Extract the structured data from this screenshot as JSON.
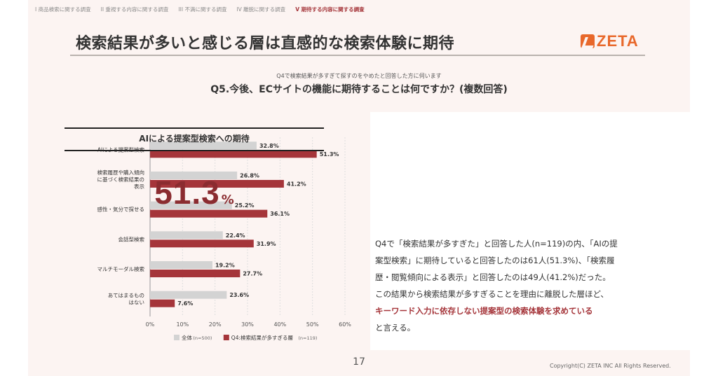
{
  "breadcrumbs": [
    {
      "label": "I 商品検索に関する調査",
      "active": false
    },
    {
      "label": "II 重視する内容に関する調査",
      "active": false
    },
    {
      "label": "III 不満に関する調査",
      "active": false
    },
    {
      "label": "IV 離脱に関する調査",
      "active": false
    },
    {
      "label": "V 期待する内容に関する調査",
      "active": true
    }
  ],
  "title": "検索結果が多いと感じる層は直感的な検索体験に期待",
  "logo": "ZETA",
  "question": {
    "sub": "Q4で検索結果が多すぎて探すのをやめたと回答した方に伺います",
    "main": "Q5.今後、ECサイトの機能に期待することは何ですか？(複数回答)"
  },
  "chart_data": {
    "type": "bar",
    "orientation": "horizontal",
    "categories": [
      [
        "AIによる提案型検索"
      ],
      [
        "検索履歴や購入傾向",
        "に基づく検索結果の",
        "表示"
      ],
      [
        "感性・気分で探せる"
      ],
      [
        "会話型検索"
      ],
      [
        "マルチモーダル検索"
      ],
      [
        "あてはまるもの",
        "はない"
      ]
    ],
    "series": [
      {
        "name": "全体",
        "name_note": "(n=500)",
        "color": "#d3d3d3",
        "values": [
          32.8,
          26.8,
          25.2,
          22.4,
          19.2,
          23.6
        ]
      },
      {
        "name": "Q4:検索結果が多すぎる層",
        "name_note": "(n=119)",
        "color": "#a5353a",
        "values": [
          51.3,
          41.2,
          36.1,
          31.9,
          27.7,
          7.6
        ]
      }
    ],
    "xlim": [
      0,
      60
    ],
    "xticks": [
      0,
      10,
      20,
      30,
      40,
      50,
      60
    ],
    "tick_suffix": "%",
    "value_suffix": "%",
    "legend_position": "bottom"
  },
  "panel": {
    "title": "AIによる提案型検索への期待",
    "big_value": "51.3",
    "big_unit": "%",
    "body": [
      {
        "text": "Q4で「検索結果が多すぎた」と回答した人(n=119)の内、「AIの提",
        "highlight": false
      },
      {
        "text": "案型検索」に期待していると回答したのは61人(51.3%)、「検索履",
        "highlight": false
      },
      {
        "text": "歴・閲覧傾向による表示」と回答したのは49人(41.2%)だった。",
        "highlight": false
      },
      {
        "text": "この結果から検索結果が多すぎることを理由に離脱した層ほど、",
        "highlight": false
      },
      {
        "text": "キーワード入力に依存しない提案型の検索体験を求めている",
        "highlight": true
      },
      {
        "text": "と言える。",
        "highlight": false
      }
    ]
  },
  "page_number": "17",
  "copyright": "Copyright(C) ZETA INC All Rights Reserved."
}
